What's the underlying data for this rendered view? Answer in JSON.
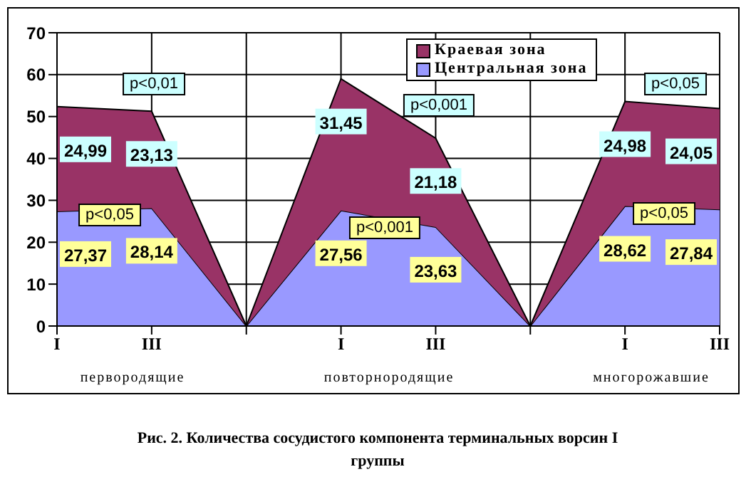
{
  "chart_data": {
    "type": "area",
    "stacked": true,
    "title": "Рис. 2. Количества сосудистого компонента терминальных ворсин I группы",
    "categories": [
      "I",
      "III",
      null,
      "I",
      "III",
      null,
      "I",
      "III"
    ],
    "series": [
      {
        "name": "Центральная зона",
        "color": "#9999ff",
        "values": [
          27.37,
          28.14,
          0,
          27.56,
          23.63,
          0,
          28.62,
          27.84
        ],
        "value_labels": [
          "27,37",
          "28,14",
          null,
          "27,56",
          "23,63",
          null,
          "28,62",
          "27,84"
        ]
      },
      {
        "name": "Краевая зона",
        "color": "#993366",
        "values": [
          24.99,
          23.13,
          0,
          31.45,
          21.18,
          0,
          24.98,
          24.05
        ],
        "value_labels": [
          "24,99",
          "23,13",
          null,
          "31,45",
          "21,18",
          null,
          "24,98",
          "24,05"
        ]
      }
    ],
    "ylim": [
      0,
      70
    ],
    "yticks": [
      0,
      10,
      20,
      30,
      40,
      50,
      60,
      70
    ],
    "grid": true,
    "legend": "top right",
    "annotations": [
      "p<0,01",
      "p<0,05",
      "p<0,001",
      "p<0,001",
      "p<0,05",
      "p<0,05",
      "первородящие",
      "повторнородящие",
      "многорожавшие"
    ]
  }
}
